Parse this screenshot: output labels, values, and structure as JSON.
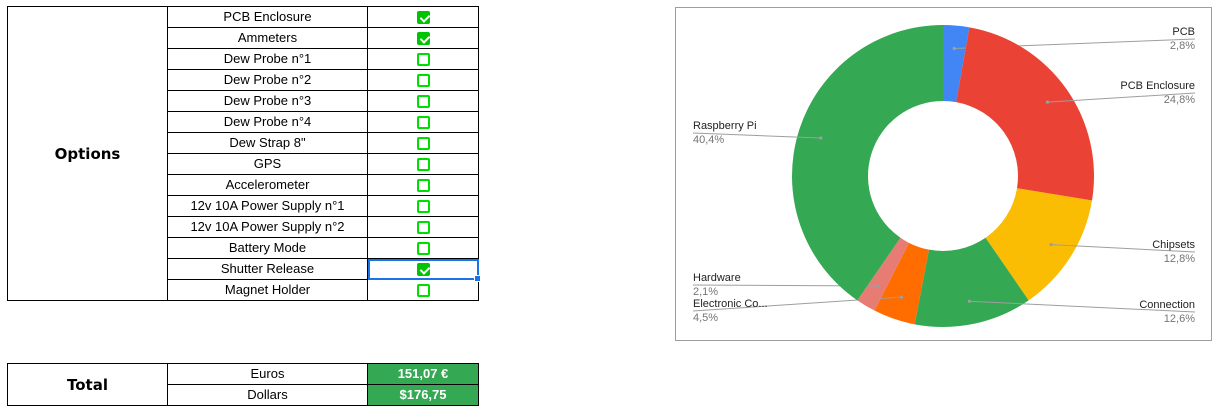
{
  "options": {
    "title": "Options",
    "items": [
      {
        "name": "PCB Enclosure",
        "checked": true
      },
      {
        "name": "Ammeters",
        "checked": true
      },
      {
        "name": "Dew Probe n°1",
        "checked": false
      },
      {
        "name": "Dew Probe n°2",
        "checked": false
      },
      {
        "name": "Dew Probe n°3",
        "checked": false
      },
      {
        "name": "Dew Probe n°4",
        "checked": false
      },
      {
        "name": "Dew Strap 8\"",
        "checked": false
      },
      {
        "name": "GPS",
        "checked": false
      },
      {
        "name": "Accelerometer",
        "checked": false
      },
      {
        "name": "12v 10A Power Supply n°1",
        "checked": false
      },
      {
        "name": "12v 10A Power Supply n°2",
        "checked": false
      },
      {
        "name": "Battery Mode",
        "checked": false
      },
      {
        "name": "Shutter Release",
        "checked": true,
        "selected": true
      },
      {
        "name": "Magnet Holder",
        "checked": false
      }
    ]
  },
  "total": {
    "title": "Total",
    "rows": [
      {
        "currency": "Euros",
        "value": "151,07 €"
      },
      {
        "currency": "Dollars",
        "value": "$176,75"
      }
    ]
  },
  "chart_data": {
    "type": "pie",
    "donut": true,
    "title": "",
    "slices": [
      {
        "label": "PCB",
        "value": 2.8,
        "pct": "2,8%",
        "color": "#4285f4"
      },
      {
        "label": "PCB Enclosure",
        "value": 24.8,
        "pct": "24,8%",
        "color": "#ea4335"
      },
      {
        "label": "Chipsets",
        "value": 12.8,
        "pct": "12,8%",
        "color": "#fbbc04"
      },
      {
        "label": "Connection",
        "value": 12.6,
        "pct": "12,6%",
        "color": "#34a853"
      },
      {
        "label": "Electronic Co...",
        "value": 4.5,
        "pct": "4,5%",
        "color": "#ff6d01"
      },
      {
        "label": "Hardware",
        "value": 2.1,
        "pct": "2,1%",
        "color": "#e67c73"
      },
      {
        "label": "Raspberry Pi",
        "value": 40.4,
        "pct": "40,4%",
        "color": "#34a853"
      }
    ]
  }
}
